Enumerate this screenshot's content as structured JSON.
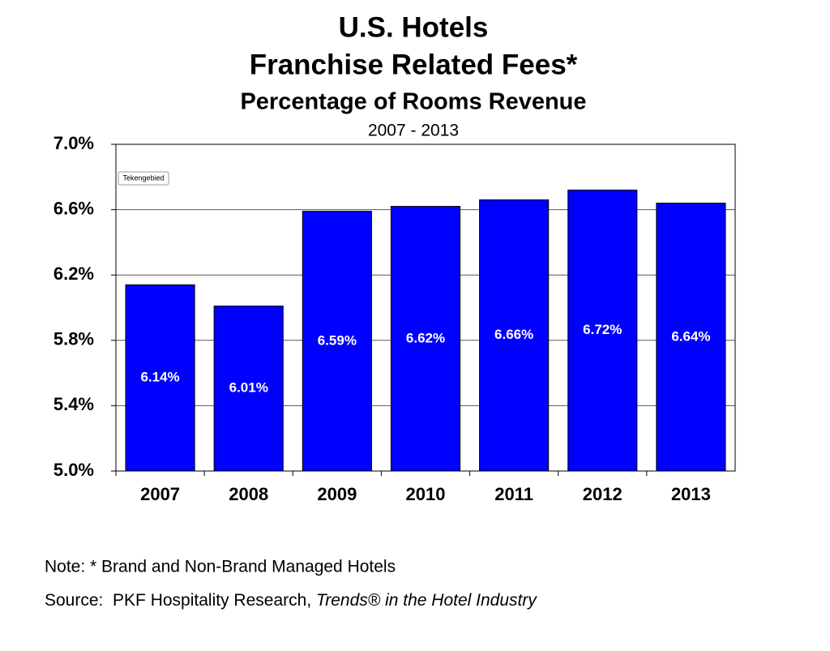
{
  "chart_data": {
    "type": "bar",
    "title": "U.S. Hotels",
    "subtitle": "Franchise Related Fees*",
    "subtitle2": "Percentage of Rooms Revenue",
    "period": "2007 - 2013",
    "categories": [
      "2007",
      "2008",
      "2009",
      "2010",
      "2011",
      "2012",
      "2013"
    ],
    "values": [
      6.14,
      6.01,
      6.59,
      6.62,
      6.66,
      6.72,
      6.64
    ],
    "value_labels": [
      "6.14%",
      "6.01%",
      "6.59%",
      "6.62%",
      "6.66%",
      "6.72%",
      "6.64%"
    ],
    "color": "#0000ff",
    "ylim": [
      5.0,
      7.0
    ],
    "yticks": [
      {
        "value": 5.0,
        "label": "5.0%"
      },
      {
        "value": 5.4,
        "label": "5.4%"
      },
      {
        "value": 5.8,
        "label": "5.8%"
      },
      {
        "value": 6.2,
        "label": "6.2%"
      },
      {
        "value": 6.6,
        "label": "6.6%"
      },
      {
        "value": 7.0,
        "label": "7.0%"
      }
    ],
    "grid": true,
    "tooltip": "Tekengebied",
    "note": "Note: * Brand and Non-Brand Managed Hotels",
    "source": "Source:  PKF Hospitality Research, ",
    "source_italic": "Trends® in the Hotel Industry"
  }
}
